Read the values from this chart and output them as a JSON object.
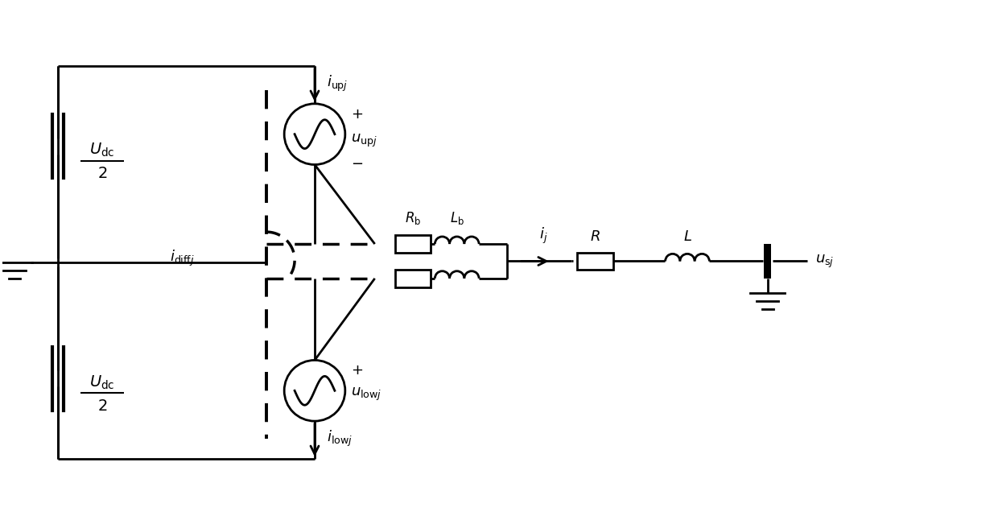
{
  "figsize": [
    12.4,
    6.41
  ],
  "dpi": 100,
  "background": "white",
  "lw": 2.0,
  "color": "black"
}
